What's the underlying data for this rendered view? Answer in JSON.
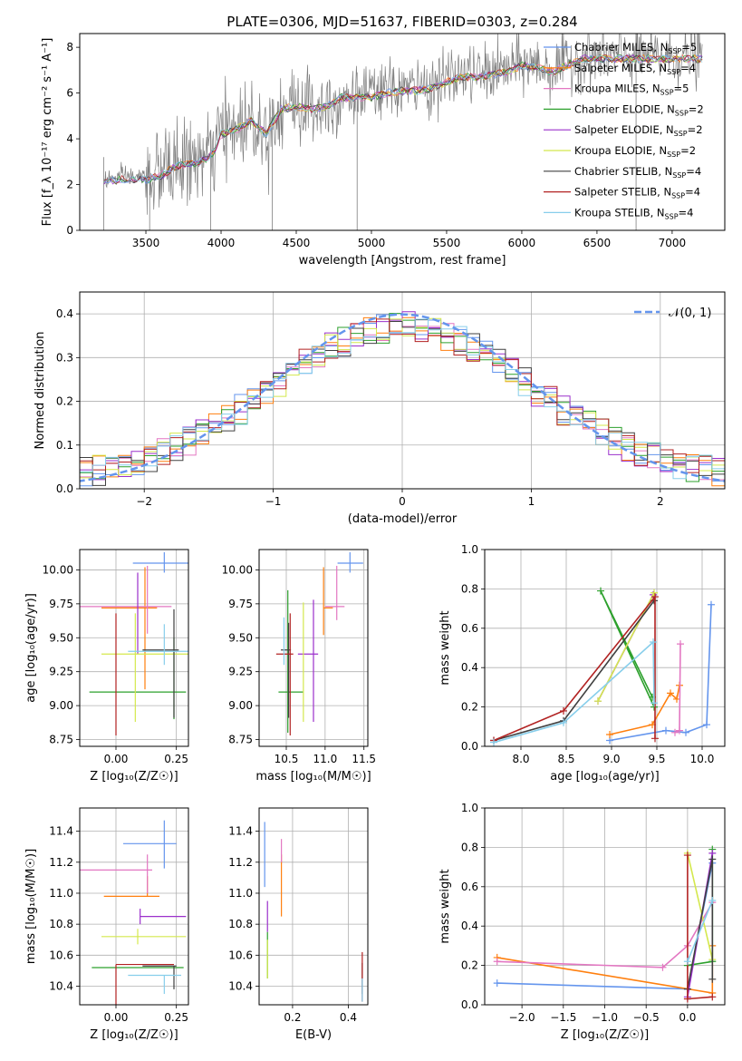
{
  "figure_title": "PLATE=0306, MJD=51637, FIBERID=0303, z=0.284",
  "model_colors": [
    "#6495ed",
    "#ff7f0e",
    "#e377c2",
    "#2ca02c",
    "#9b30cc",
    "#d4e84d",
    "#404040",
    "#b22222",
    "#87ceeb"
  ],
  "chart_data": [
    {
      "id": "spectrum",
      "type": "line",
      "title": "PLATE=0306, MJD=51637, FIBERID=0303, z=0.284",
      "xlabel": "wavelength [Angstrom, rest frame]",
      "ylabel": "Flux [f_λ 10⁻¹⁷ erg cm⁻² s⁻¹ A⁻¹]",
      "xlim": [
        3060,
        7350
      ],
      "ylim": [
        0,
        8.6
      ],
      "xticks": [
        "3500",
        "4000",
        "4500",
        "5000",
        "5500",
        "6000",
        "6500",
        "7000"
      ],
      "yticks": [
        "0",
        "2",
        "4",
        "6",
        "8"
      ],
      "legend_location": "right",
      "legend": [
        "Chabrier MILES, N_SSP=5",
        "Salpeter MILES, N_SSP=4",
        "Kroupa MILES, N_SSP=5",
        "Chabrier ELODIE, N_SSP=2",
        "Salpeter ELODIE, N_SSP=2",
        "Kroupa ELODIE, N_SSP=2",
        "Chabrier STELIB, N_SSP=4",
        "Salpeter STELIB, N_SSP=4",
        "Kroupa STELIB, N_SSP=4"
      ],
      "continuum": {
        "x": [
          3220,
          3300,
          3400,
          3500,
          3600,
          3700,
          3800,
          3900,
          3950,
          4000,
          4100,
          4200,
          4300,
          4400,
          4500,
          4600,
          4700,
          4800,
          4900,
          5000,
          5100,
          5200,
          5300,
          5400,
          5500,
          5600,
          5700,
          5800,
          5900,
          6000,
          6100,
          6200,
          6300,
          6400,
          6500,
          6600,
          6700,
          6800,
          6900,
          7000,
          7100,
          7200
        ],
        "y": [
          2.2,
          2.3,
          2.35,
          2.3,
          2.5,
          2.9,
          3.0,
          3.2,
          3.5,
          4.3,
          4.5,
          4.9,
          4.3,
          5.4,
          5.5,
          5.4,
          5.5,
          5.9,
          5.9,
          5.9,
          6.1,
          6.2,
          6.2,
          6.3,
          6.6,
          6.8,
          6.8,
          6.9,
          7.0,
          7.3,
          7.2,
          7.0,
          7.3,
          7.6,
          7.6,
          7.6,
          7.6,
          7.6,
          7.6,
          7.6,
          7.6,
          7.6
        ]
      },
      "observed_noise_sigma": 0.9
    },
    {
      "id": "residuals",
      "type": "line",
      "xlabel": "(data-model)/error",
      "ylabel": "Normed distribution",
      "xlim": [
        -2.5,
        2.5
      ],
      "ylim": [
        0,
        0.45
      ],
      "xticks": [
        "−2",
        "−1",
        "0",
        "1",
        "2"
      ],
      "yticks": [
        "0.0",
        "0.1",
        "0.2",
        "0.3",
        "0.4"
      ],
      "legend": [
        "𝒩(0, 1)"
      ],
      "legend_location": "top-right",
      "gaussian": {
        "mean": 0,
        "sigma": 1
      },
      "bin_width": 0.1,
      "grid": true
    },
    {
      "id": "age-vs-Z",
      "type": "scatter",
      "xlabel": "Z [log₁₀(Z/Z☉)]",
      "ylabel": "age  [log₁₀(age/yr)]",
      "xlim": [
        -0.15,
        0.3
      ],
      "ylim": [
        8.7,
        10.15
      ],
      "xticks": [
        "0.00",
        "0.25"
      ],
      "yticks": [
        "8.75",
        "9.00",
        "9.25",
        "9.50",
        "9.75",
        "10.00"
      ],
      "grid": true,
      "points": [
        {
          "x": 0.2,
          "y": 10.05,
          "xerr": [
            0.13,
            0.1
          ],
          "yerr": [
            0.07,
            0.08
          ]
        },
        {
          "x": 0.12,
          "y": 9.72,
          "xerr": [
            0.18,
            0.05
          ],
          "yerr": [
            0.6,
            0.3
          ]
        },
        {
          "x": 0.13,
          "y": 9.73,
          "xerr": [
            0.33,
            0.1
          ],
          "yerr": [
            0.2,
            0.3
          ]
        },
        {
          "x": 0.24,
          "y": 9.1,
          "xerr": [
            0.35,
            0.05
          ],
          "yerr": [
            0.2,
            0.4
          ]
        },
        {
          "x": 0.09,
          "y": 9.38,
          "xerr": [
            0.0,
            0.0
          ],
          "yerr": [
            0.0,
            0.6
          ]
        },
        {
          "x": 0.08,
          "y": 9.38,
          "xerr": [
            0.14,
            0.22
          ],
          "yerr": [
            0.5,
            0.3
          ]
        },
        {
          "x": 0.24,
          "y": 9.41,
          "xerr": [
            0.13,
            0.02
          ],
          "yerr": [
            0.5,
            0.3
          ]
        },
        {
          "x": 0.0,
          "y": 9.38,
          "xerr": [
            0.0,
            0.0
          ],
          "yerr": [
            0.6,
            0.3
          ]
        },
        {
          "x": 0.2,
          "y": 9.4,
          "xerr": [
            0.15,
            0.1
          ],
          "yerr": [
            0.1,
            0.2
          ]
        }
      ]
    },
    {
      "id": "age-vs-mass",
      "type": "scatter",
      "xlabel": "mass [log₁₀(M/M☉)]",
      "xlim": [
        10.15,
        11.55
      ],
      "ylim": [
        8.7,
        10.15
      ],
      "xticks": [
        "10.5",
        "11.0",
        "11.5"
      ],
      "yticks": [
        "8.75",
        "9.00",
        "9.25",
        "9.50",
        "9.75",
        "10.00"
      ],
      "grid": true,
      "points": [
        {
          "x": 11.32,
          "y": 10.05,
          "xerr": [
            0.16,
            0.17
          ],
          "yerr": [
            0.07,
            0.08
          ]
        },
        {
          "x": 10.98,
          "y": 9.72,
          "xerr": [
            0.0,
            0.12
          ],
          "yerr": [
            0.2,
            0.3
          ]
        },
        {
          "x": 11.15,
          "y": 9.73,
          "xerr": [
            0.15,
            0.1
          ],
          "yerr": [
            0.1,
            0.3
          ]
        },
        {
          "x": 10.52,
          "y": 9.1,
          "xerr": [
            0.12,
            0.2
          ],
          "yerr": [
            0.3,
            0.75
          ]
        },
        {
          "x": 10.85,
          "y": 9.38,
          "xerr": [
            0.2,
            0.06
          ],
          "yerr": [
            0.5,
            0.4
          ]
        },
        {
          "x": 10.72,
          "y": 9.38,
          "xerr": [
            0.0,
            0.0
          ],
          "yerr": [
            0.5,
            0.38
          ]
        },
        {
          "x": 10.53,
          "y": 9.41,
          "xerr": [
            0.1,
            0.03
          ],
          "yerr": [
            0.5,
            0.2
          ]
        },
        {
          "x": 10.55,
          "y": 9.38,
          "xerr": [
            0.18,
            0.04
          ],
          "yerr": [
            0.6,
            0.3
          ]
        },
        {
          "x": 10.47,
          "y": 9.4,
          "xerr": [
            0.0,
            0.0
          ],
          "yerr": [
            0.1,
            0.25
          ]
        }
      ]
    },
    {
      "id": "weight-vs-age",
      "type": "line",
      "xlabel": "age  [log₁₀(age/yr)]",
      "ylabel": "mass weight",
      "xlim": [
        7.6,
        10.25
      ],
      "ylim": [
        0.0,
        1.0
      ],
      "xticks": [
        "8.0",
        "8.5",
        "9.0",
        "9.5",
        "10.0"
      ],
      "yticks": [
        "0.0",
        "0.2",
        "0.4",
        "0.6",
        "0.8",
        "1.0"
      ],
      "grid": true,
      "series": [
        {
          "x": [
            8.98,
            9.6,
            9.82,
            10.05,
            10.1
          ],
          "y": [
            0.03,
            0.08,
            0.07,
            0.11,
            0.72
          ]
        },
        {
          "x": [
            8.98,
            9.45,
            9.65,
            9.72,
            9.75
          ],
          "y": [
            0.06,
            0.11,
            0.27,
            0.24,
            0.31
          ]
        },
        {
          "x": [
            9.7,
            9.75,
            9.76
          ],
          "y": [
            0.07,
            0.08,
            0.52
          ]
        },
        {
          "x": [
            9.45,
            8.88,
            9.47
          ],
          "y": [
            0.25,
            0.79,
            0.2
          ]
        },
        {
          "x": [
            8.85,
            9.46
          ],
          "y": [
            0.23,
            0.77
          ]
        },
        {
          "x": [
            8.85,
            9.47
          ],
          "y": [
            0.23,
            0.78
          ]
        },
        {
          "x": [
            7.7,
            8.47,
            9.47
          ],
          "y": [
            0.03,
            0.13,
            0.74
          ]
        },
        {
          "x": [
            7.7,
            8.47,
            9.48,
            9.48
          ],
          "y": [
            0.03,
            0.18,
            0.76,
            0.04
          ]
        },
        {
          "x": [
            7.7,
            8.47,
            9.46,
            9.47
          ],
          "y": [
            0.02,
            0.12,
            0.53,
            0.22
          ]
        }
      ]
    },
    {
      "id": "mass-vs-Z",
      "type": "scatter",
      "xlabel": "Z [log₁₀(Z/Z☉)]",
      "ylabel": "mass [log₁₀(M/M☉)]",
      "xlim": [
        -0.15,
        0.3
      ],
      "ylim": [
        10.28,
        11.55
      ],
      "xticks": [
        "0.00",
        "0.25"
      ],
      "yticks": [
        "10.4",
        "10.6",
        "10.8",
        "11.0",
        "11.2",
        "11.4"
      ],
      "grid": true,
      "points": [
        {
          "x": 0.2,
          "y": 11.32,
          "xerr": [
            0.17,
            0.05
          ],
          "yerr": [
            0.16,
            0.15
          ]
        },
        {
          "x": 0.13,
          "y": 10.98,
          "xerr": [
            0.18,
            0.05
          ],
          "yerr": [
            0.0,
            0.13
          ]
        },
        {
          "x": 0.13,
          "y": 11.15,
          "xerr": [
            0.28,
            0.02
          ],
          "yerr": [
            0.15,
            0.1
          ]
        },
        {
          "x": 0.25,
          "y": 10.52,
          "xerr": [
            0.35,
            0.03
          ],
          "yerr": [
            0.0,
            0.0
          ]
        },
        {
          "x": 0.1,
          "y": 10.85,
          "xerr": [
            0.0,
            0.19
          ],
          "yerr": [
            0.05,
            0.05
          ]
        },
        {
          "x": 0.09,
          "y": 10.72,
          "xerr": [
            0.15,
            0.2
          ],
          "yerr": [
            0.05,
            0.05
          ]
        },
        {
          "x": 0.24,
          "y": 10.53,
          "xerr": [
            0.13,
            0.01
          ],
          "yerr": [
            0.15,
            0.0
          ]
        },
        {
          "x": 0.0,
          "y": 10.54,
          "xerr": [
            0.0,
            0.24
          ],
          "yerr": [
            0.26,
            0.0
          ]
        },
        {
          "x": 0.2,
          "y": 10.47,
          "xerr": [
            0.15,
            0.07
          ],
          "yerr": [
            0.12,
            0.0
          ]
        }
      ]
    },
    {
      "id": "mass-vs-EBV",
      "type": "scatter",
      "xlabel": "E(B-V)",
      "xlim": [
        0.08,
        0.47
      ],
      "ylim": [
        10.28,
        11.55
      ],
      "xticks": [
        "0.2",
        "0.4"
      ],
      "yticks": [
        "10.4",
        "10.6",
        "10.8",
        "11.0",
        "11.2",
        "11.4"
      ],
      "grid": true,
      "points": [
        {
          "x": 0.1,
          "y": 11.24,
          "xerr": [
            0.0,
            0.0
          ],
          "yerr": [
            0.2,
            0.22
          ]
        },
        {
          "x": 0.16,
          "y": 11.05,
          "xerr": [
            0.0,
            0.0
          ],
          "yerr": [
            0.2,
            0.2
          ]
        },
        {
          "x": 0.16,
          "y": 11.25,
          "xerr": [
            0.0,
            0.0
          ],
          "yerr": [
            0.05,
            0.1
          ]
        },
        {
          "x": 0.11,
          "y": 10.6,
          "xerr": [
            0.0,
            0.0
          ],
          "yerr": [
            0.15,
            0.15
          ]
        },
        {
          "x": 0.11,
          "y": 10.85,
          "xerr": [
            0.0,
            0.0
          ],
          "yerr": [
            0.1,
            0.1
          ]
        },
        {
          "x": 0.11,
          "y": 10.6,
          "xerr": [
            0.0,
            0.0
          ],
          "yerr": [
            0.15,
            0.1
          ]
        },
        {
          "x": 0.45,
          "y": 10.45,
          "xerr": [
            0.0,
            0.0
          ],
          "yerr": [
            0.1,
            0.1
          ]
        },
        {
          "x": 0.45,
          "y": 10.5,
          "xerr": [
            0.0,
            0.0
          ],
          "yerr": [
            0.2,
            0.12
          ]
        },
        {
          "x": 0.45,
          "y": 10.35,
          "xerr": [
            0.0,
            0.0
          ],
          "yerr": [
            0.05,
            0.1
          ]
        }
      ]
    },
    {
      "id": "weight-vs-Z",
      "type": "line",
      "xlabel": "Z [log₁₀(Z/Z☉)]",
      "ylabel": "mass weight",
      "xlim": [
        -2.45,
        0.45
      ],
      "ylim": [
        0.0,
        1.0
      ],
      "xticks": [
        "−2.0",
        "−1.5",
        "−1.0",
        "−0.5",
        "0.0"
      ],
      "yticks": [
        "0.0",
        "0.2",
        "0.4",
        "0.6",
        "0.8",
        "1.0"
      ],
      "grid": true,
      "series": [
        {
          "x": [
            -2.3,
            0.0,
            0.3
          ],
          "y": [
            0.11,
            0.08,
            0.72
          ]
        },
        {
          "x": [
            -2.3,
            0.3,
            0.3
          ],
          "y": [
            0.24,
            0.06,
            0.3
          ]
        },
        {
          "x": [
            -2.3,
            -0.3,
            0.0,
            0.3
          ],
          "y": [
            0.22,
            0.19,
            0.3,
            0.52
          ]
        },
        {
          "x": [
            0.3,
            0.3,
            0.0
          ],
          "y": [
            0.79,
            0.22,
            0.2
          ]
        },
        {
          "x": [
            0.0,
            0.3
          ],
          "y": [
            0.04,
            0.77
          ]
        },
        {
          "x": [
            0.0,
            0.3
          ],
          "y": [
            0.77,
            0.23
          ]
        },
        {
          "x": [
            0.0,
            0.3,
            0.3
          ],
          "y": [
            0.08,
            0.74,
            0.13
          ]
        },
        {
          "x": [
            0.0,
            0.0,
            0.3
          ],
          "y": [
            0.76,
            0.03,
            0.04
          ]
        },
        {
          "x": [
            0.0,
            0.3
          ],
          "y": [
            0.22,
            0.53
          ]
        }
      ]
    }
  ]
}
